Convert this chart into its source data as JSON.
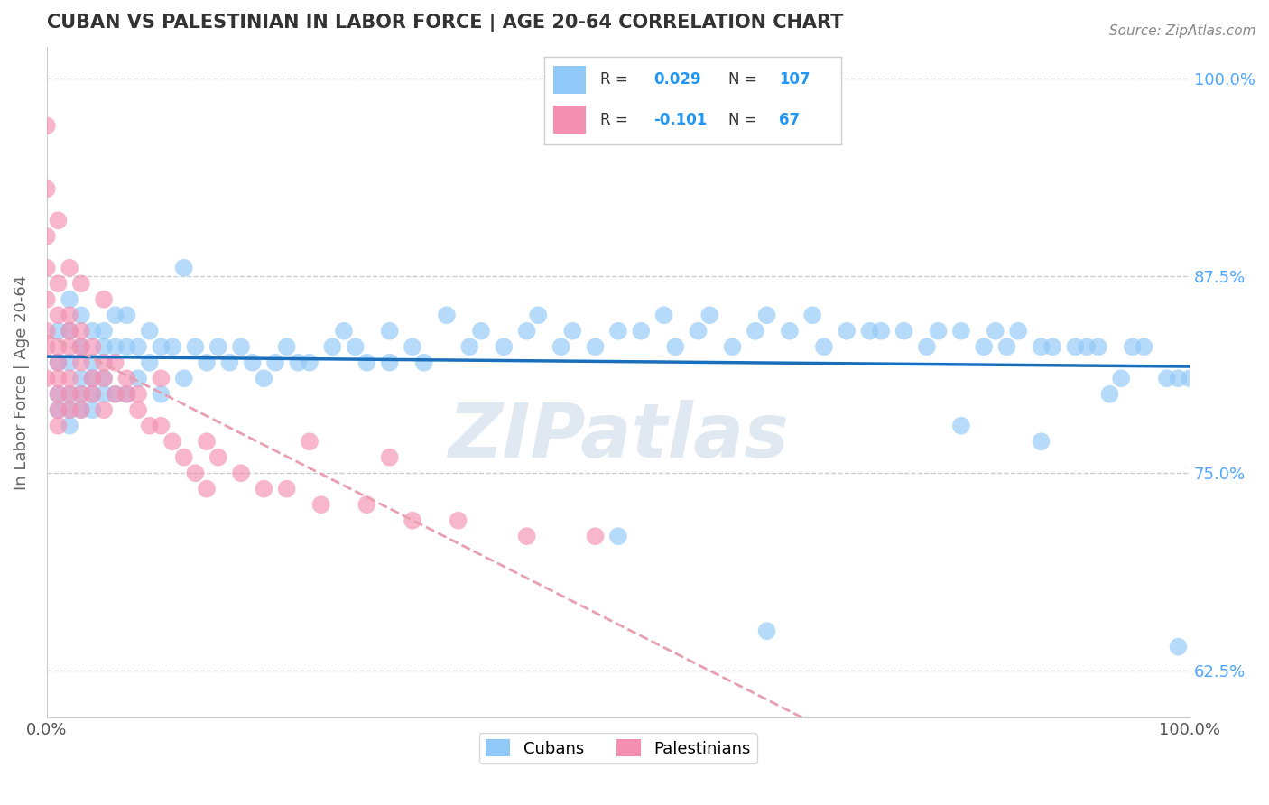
{
  "title": "CUBAN VS PALESTINIAN IN LABOR FORCE | AGE 20-64 CORRELATION CHART",
  "source_text": "Source: ZipAtlas.com",
  "ylabel": "In Labor Force | Age 20-64",
  "xlim": [
    0,
    1
  ],
  "ylim": [
    0.595,
    1.02
  ],
  "yticks": [
    0.625,
    0.75,
    0.875,
    1.0
  ],
  "ytick_labels": [
    "62.5%",
    "75.0%",
    "87.5%",
    "100.0%"
  ],
  "cuban_color": "#90c8f8",
  "palestinian_color": "#f48fb1",
  "cuban_line_color": "#1a6fbd",
  "palestinian_line_color": "#e8a0b0",
  "legend_label_cuban": "Cubans",
  "legend_label_palestinian": "Palestinians",
  "watermark": "ZIPatlas",
  "cuban_x": [
    0.01,
    0.01,
    0.01,
    0.01,
    0.02,
    0.02,
    0.02,
    0.02,
    0.02,
    0.02,
    0.03,
    0.03,
    0.03,
    0.03,
    0.03,
    0.04,
    0.04,
    0.04,
    0.04,
    0.04,
    0.05,
    0.05,
    0.05,
    0.05,
    0.06,
    0.06,
    0.06,
    0.07,
    0.07,
    0.07,
    0.08,
    0.08,
    0.09,
    0.09,
    0.1,
    0.1,
    0.11,
    0.12,
    0.12,
    0.13,
    0.14,
    0.15,
    0.16,
    0.17,
    0.18,
    0.19,
    0.2,
    0.21,
    0.22,
    0.23,
    0.25,
    0.26,
    0.27,
    0.28,
    0.3,
    0.3,
    0.32,
    0.33,
    0.35,
    0.37,
    0.38,
    0.4,
    0.42,
    0.43,
    0.45,
    0.46,
    0.48,
    0.5,
    0.52,
    0.54,
    0.55,
    0.57,
    0.58,
    0.6,
    0.62,
    0.63,
    0.65,
    0.67,
    0.68,
    0.7,
    0.72,
    0.73,
    0.75,
    0.77,
    0.78,
    0.8,
    0.82,
    0.84,
    0.85,
    0.87,
    0.88,
    0.9,
    0.91,
    0.92,
    0.94,
    0.95,
    0.96,
    0.98,
    0.99,
    1.0,
    0.5,
    0.63,
    0.8,
    0.83,
    0.87,
    0.93,
    0.99
  ],
  "cuban_y": [
    0.84,
    0.82,
    0.8,
    0.79,
    0.86,
    0.84,
    0.82,
    0.8,
    0.79,
    0.78,
    0.85,
    0.83,
    0.81,
    0.8,
    0.79,
    0.84,
    0.82,
    0.81,
    0.8,
    0.79,
    0.84,
    0.83,
    0.81,
    0.8,
    0.85,
    0.83,
    0.8,
    0.85,
    0.83,
    0.8,
    0.83,
    0.81,
    0.84,
    0.82,
    0.83,
    0.8,
    0.83,
    0.88,
    0.81,
    0.83,
    0.82,
    0.83,
    0.82,
    0.83,
    0.82,
    0.81,
    0.82,
    0.83,
    0.82,
    0.82,
    0.83,
    0.84,
    0.83,
    0.82,
    0.84,
    0.82,
    0.83,
    0.82,
    0.85,
    0.83,
    0.84,
    0.83,
    0.84,
    0.85,
    0.83,
    0.84,
    0.83,
    0.84,
    0.84,
    0.85,
    0.83,
    0.84,
    0.85,
    0.83,
    0.84,
    0.85,
    0.84,
    0.85,
    0.83,
    0.84,
    0.84,
    0.84,
    0.84,
    0.83,
    0.84,
    0.84,
    0.83,
    0.83,
    0.84,
    0.83,
    0.83,
    0.83,
    0.83,
    0.83,
    0.81,
    0.83,
    0.83,
    0.81,
    0.81,
    0.81,
    0.71,
    0.65,
    0.78,
    0.84,
    0.77,
    0.8,
    0.64
  ],
  "pal_x": [
    0.0,
    0.0,
    0.0,
    0.0,
    0.0,
    0.0,
    0.0,
    0.01,
    0.01,
    0.01,
    0.01,
    0.01,
    0.01,
    0.01,
    0.01,
    0.02,
    0.02,
    0.02,
    0.02,
    0.02,
    0.02,
    0.03,
    0.03,
    0.03,
    0.03,
    0.03,
    0.04,
    0.04,
    0.04,
    0.05,
    0.05,
    0.05,
    0.06,
    0.06,
    0.07,
    0.07,
    0.08,
    0.08,
    0.09,
    0.1,
    0.11,
    0.12,
    0.13,
    0.14,
    0.15,
    0.17,
    0.19,
    0.21,
    0.24,
    0.28,
    0.32,
    0.36,
    0.42,
    0.48,
    0.0,
    0.01,
    0.02,
    0.03,
    0.05,
    0.1,
    0.14,
    0.23,
    0.3
  ],
  "pal_y": [
    0.93,
    0.9,
    0.88,
    0.86,
    0.84,
    0.83,
    0.81,
    0.87,
    0.85,
    0.83,
    0.82,
    0.81,
    0.8,
    0.79,
    0.78,
    0.85,
    0.84,
    0.83,
    0.81,
    0.8,
    0.79,
    0.84,
    0.83,
    0.82,
    0.8,
    0.79,
    0.83,
    0.81,
    0.8,
    0.82,
    0.81,
    0.79,
    0.82,
    0.8,
    0.81,
    0.8,
    0.8,
    0.79,
    0.78,
    0.78,
    0.77,
    0.76,
    0.75,
    0.74,
    0.76,
    0.75,
    0.74,
    0.74,
    0.73,
    0.73,
    0.72,
    0.72,
    0.71,
    0.71,
    0.97,
    0.91,
    0.88,
    0.87,
    0.86,
    0.81,
    0.77,
    0.77,
    0.76
  ]
}
